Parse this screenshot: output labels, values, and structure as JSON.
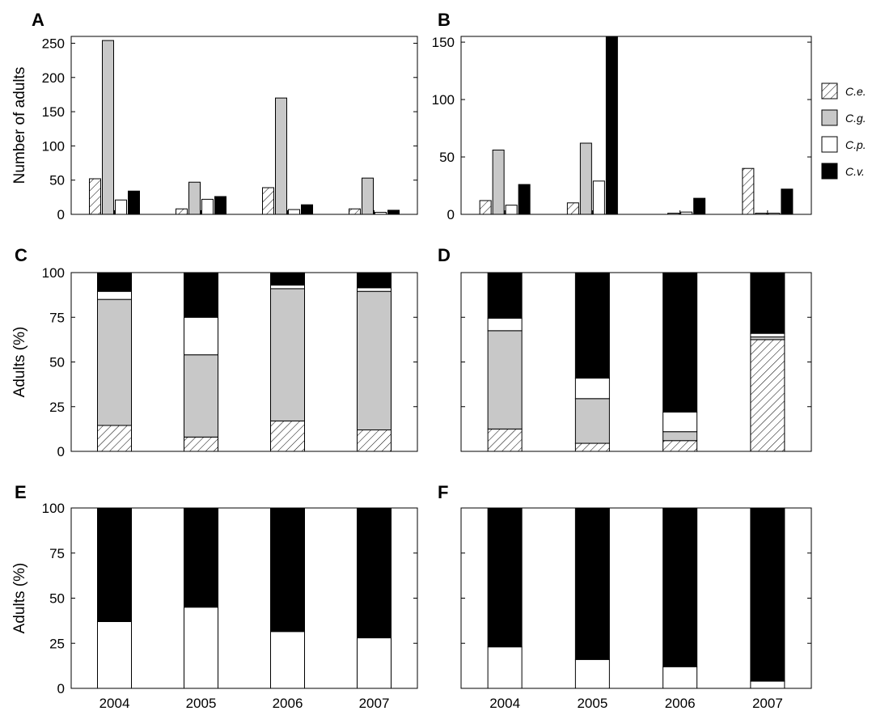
{
  "colors": {
    "C.e.": "hatch",
    "C.g.": "#c8c8c8",
    "C.p.": "#ffffff",
    "C.v.": "#000000"
  },
  "legend": [
    {
      "key": "C.e.",
      "label": "C.e."
    },
    {
      "key": "C.g.",
      "label": "C.g."
    },
    {
      "key": "C.p.",
      "label": "C.p."
    },
    {
      "key": "C.v.",
      "label": "C.v."
    }
  ],
  "chart_data": [
    {
      "panel": "A",
      "type": "bar",
      "ylabel": "Number of  adults",
      "categories": [
        "2004",
        "2005",
        "2006",
        "2007"
      ],
      "ylim": [
        0,
        260
      ],
      "yticks": [
        0,
        50,
        100,
        150,
        200,
        250
      ],
      "show_xticklabels": false,
      "show_yticklabels": true,
      "series": [
        {
          "name": "C.e.",
          "values": [
            52,
            8,
            39,
            8
          ]
        },
        {
          "name": "C.g.",
          "values": [
            254,
            47,
            170,
            53
          ]
        },
        {
          "name": "C.p.",
          "values": [
            21,
            22,
            7,
            3
          ]
        },
        {
          "name": "C.v.",
          "values": [
            34,
            26,
            14,
            6
          ]
        }
      ]
    },
    {
      "panel": "B",
      "type": "bar",
      "ylabel": "",
      "categories": [
        "2004",
        "2005",
        "2006",
        "2007"
      ],
      "ylim": [
        0,
        155
      ],
      "yticks": [
        0,
        50,
        100,
        150
      ],
      "show_xticklabels": false,
      "show_yticklabels": true,
      "series": [
        {
          "name": "C.e.",
          "values": [
            12,
            10,
            0,
            40
          ]
        },
        {
          "name": "C.g.",
          "values": [
            56,
            62,
            1,
            1
          ]
        },
        {
          "name": "C.p.",
          "values": [
            8,
            29,
            2,
            1
          ]
        },
        {
          "name": "C.v.",
          "values": [
            26,
            155,
            14,
            22
          ]
        }
      ]
    },
    {
      "panel": "C",
      "type": "bar",
      "stacked": true,
      "ylabel": "Adults (%)",
      "categories": [
        "2004",
        "2005",
        "2006",
        "2007"
      ],
      "ylim": [
        0,
        100
      ],
      "yticks": [
        0,
        25,
        50,
        75,
        100
      ],
      "show_xticklabels": false,
      "show_yticklabels": true,
      "series": [
        {
          "name": "C.e.",
          "values": [
            14.5,
            8,
            17,
            12
          ]
        },
        {
          "name": "C.g.",
          "values": [
            70.5,
            46,
            74,
            77.5
          ]
        },
        {
          "name": "C.p.",
          "values": [
            4.5,
            21,
            2,
            2
          ]
        },
        {
          "name": "C.v.",
          "values": [
            10.5,
            25,
            7,
            8.5
          ]
        }
      ]
    },
    {
      "panel": "D",
      "type": "bar",
      "stacked": true,
      "ylabel": "",
      "categories": [
        "2004",
        "2005",
        "2006",
        "2007"
      ],
      "ylim": [
        0,
        100
      ],
      "yticks": [
        0,
        25,
        50,
        75,
        100
      ],
      "show_xticklabels": false,
      "show_yticklabels": false,
      "series": [
        {
          "name": "C.e.",
          "values": [
            12.5,
            4.5,
            6,
            62.5
          ]
        },
        {
          "name": "C.g.",
          "values": [
            55,
            25,
            5,
            1.5
          ]
        },
        {
          "name": "C.p.",
          "values": [
            7,
            11.5,
            11,
            2
          ]
        },
        {
          "name": "C.v.",
          "values": [
            25.5,
            59,
            78,
            34
          ]
        }
      ]
    },
    {
      "panel": "E",
      "type": "bar",
      "stacked": true,
      "ylabel": "Adults (%)",
      "categories": [
        "2004",
        "2005",
        "2006",
        "2007"
      ],
      "ylim": [
        0,
        100
      ],
      "yticks": [
        0,
        25,
        50,
        75,
        100
      ],
      "show_xticklabels": true,
      "show_yticklabels": true,
      "series": [
        {
          "name": "C.p.",
          "values": [
            37,
            45,
            31.5,
            28
          ]
        },
        {
          "name": "C.v.",
          "values": [
            63,
            55,
            68.5,
            72
          ]
        }
      ]
    },
    {
      "panel": "F",
      "type": "bar",
      "stacked": true,
      "ylabel": "",
      "categories": [
        "2004",
        "2005",
        "2006",
        "2007"
      ],
      "ylim": [
        0,
        100
      ],
      "yticks": [
        0,
        25,
        50,
        75,
        100
      ],
      "show_xticklabels": true,
      "show_yticklabels": false,
      "series": [
        {
          "name": "C.p.",
          "values": [
            23,
            16,
            12,
            4
          ]
        },
        {
          "name": "C.v.",
          "values": [
            77,
            84,
            88,
            96
          ]
        }
      ]
    }
  ]
}
